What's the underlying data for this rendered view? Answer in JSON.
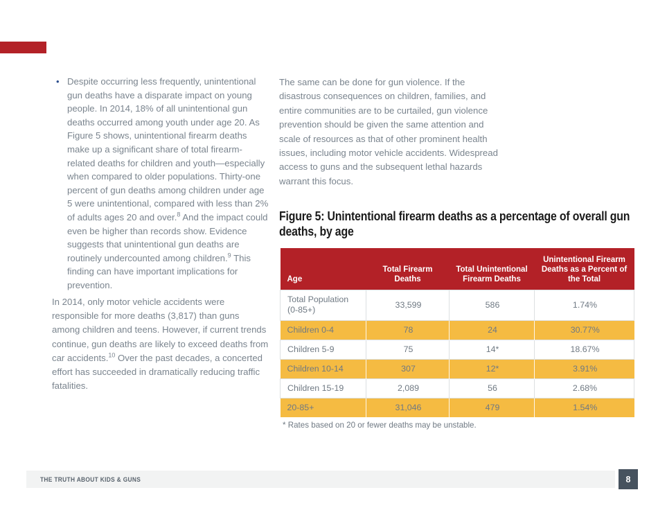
{
  "theme": {
    "accent_red": "#B32127",
    "highlight_yellow": "#F5BB42",
    "body_text": "#7A848E",
    "table_text": "#6F7983",
    "title_text": "#1A1A1A",
    "bullet_blue": "#2B4E8E",
    "footer_bg": "#F2F3F3",
    "footer_text": "#59636D",
    "page_badge_bg": "#46525E"
  },
  "left_column": {
    "bullet_paragraph": [
      {
        "t": "Despite occurring less frequently, unintentional gun deaths have a disparate impact on young people. In 2014, 18% of all unintentional gun deaths occurred among youth under age 20. As Figure 5 shows, unintentional firearm deaths make up a significant share of total firearm-related deaths for children and youth—especially when compared to older populations. Thirty-one percent of gun deaths among children under age 5 were unintentional, compared with less than 2% of adults ages 20 and over."
      },
      {
        "t": "8",
        "sup": true
      },
      {
        "t": " And the impact could even be higher than records show. Evidence suggests that unintentional gun deaths are routinely undercounted among children."
      },
      {
        "t": "9",
        "sup": true
      },
      {
        "t": " This finding can have important implications for prevention."
      }
    ],
    "paragraph": [
      {
        "t": "In 2014, only motor vehicle accidents were responsible for more deaths (3,817) than guns among children and teens. However, if current trends continue, gun deaths are likely to exceed deaths from car accidents."
      },
      {
        "t": "10",
        "sup": true
      },
      {
        "t": " Over the past decades, a concerted effort has succeeded in dramatically reducing traffic fatalities."
      }
    ]
  },
  "right_column": {
    "paragraph": "The same can be done for gun violence. If the disastrous consequences on children, families, and entire communities are to be curtailed, gun violence prevention should be given the same attention and scale of resources as that of other prominent health issues, including motor vehicle accidents. Widespread access to guns and the subsequent lethal hazards warrant this focus."
  },
  "figure": {
    "title": "Figure 5: Unintentional firearm deaths as a percentage of overall gun deaths, by age",
    "table": {
      "headers": [
        "Age",
        "Total Firearm Deaths",
        "Total Unintentional Firearm Deaths",
        "Unintentional Firearm Deaths as a Percent of the Total"
      ],
      "rows": [
        {
          "age": "Total Population (0-85+)",
          "total": "33,599",
          "unintentional": "586",
          "percent": "1.74%",
          "highlight": false
        },
        {
          "age": "Children 0-4",
          "total": "78",
          "unintentional": "24",
          "percent": "30.77%",
          "highlight": true
        },
        {
          "age": "Children 5-9",
          "total": "75",
          "unintentional": "14*",
          "percent": "18.67%",
          "highlight": false
        },
        {
          "age": "Children 10-14",
          "total": "307",
          "unintentional": "12*",
          "percent": "3.91%",
          "highlight": true
        },
        {
          "age": "Children 15-19",
          "total": "2,089",
          "unintentional": "56",
          "percent": "2.68%",
          "highlight": false
        },
        {
          "age": "20-85+",
          "total": "31,046",
          "unintentional": "479",
          "percent": "1.54%",
          "highlight": true
        }
      ],
      "footnote": "* Rates based on 20 or fewer deaths may be unstable."
    }
  },
  "footer": {
    "text": "THE TRUTH ABOUT KIDS & GUNS",
    "page_number": "8"
  }
}
